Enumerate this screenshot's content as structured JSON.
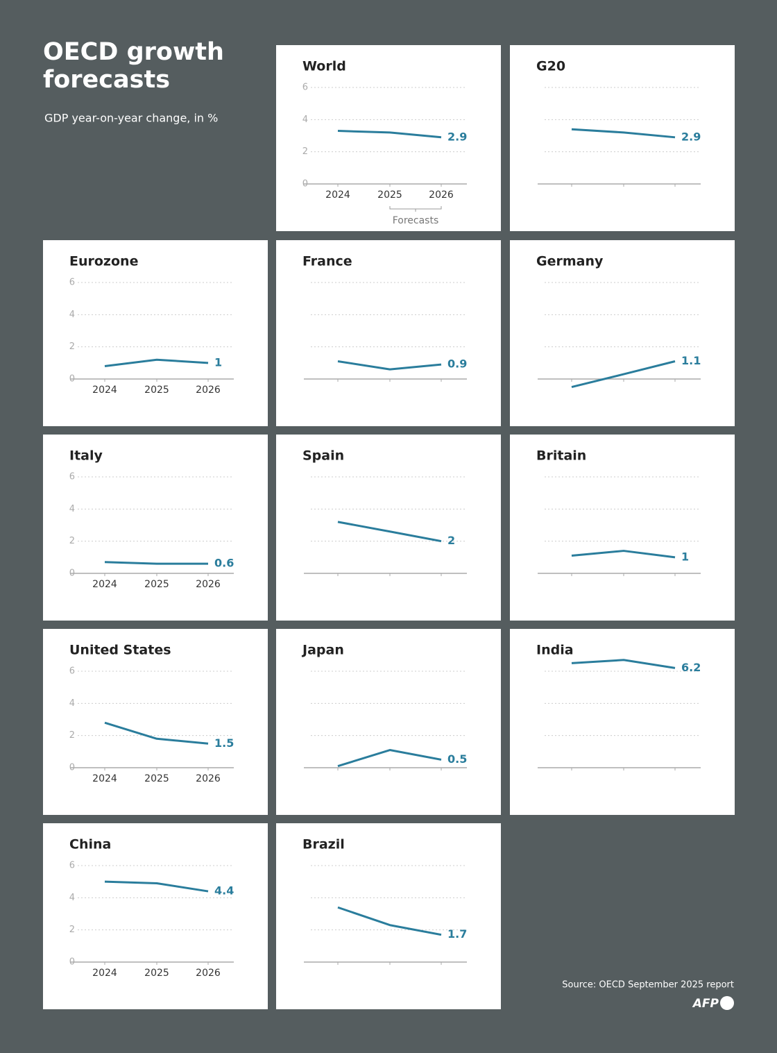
{
  "title": "OECD growth forecasts",
  "subtitle": "GDP year-on-year change, in %",
  "source": "Source: OECD September 2025 report",
  "logo": "AFP",
  "chart_data": [
    {
      "type": "line",
      "title": "World",
      "categories": [
        "2024",
        "2025",
        "2026"
      ],
      "values": [
        3.3,
        3.2,
        2.9
      ],
      "color": "#2a7d9c",
      "ylim": [
        0,
        6
      ],
      "yticks": [
        0,
        2,
        4,
        6
      ],
      "ytick_labels": true,
      "grid": true,
      "annotation": "Forecasts"
    },
    {
      "type": "line",
      "title": "G20",
      "categories": [
        null,
        null,
        null
      ],
      "values": [
        3.4,
        3.2,
        2.9
      ],
      "color": "#2a7d9c",
      "ylim": [
        0,
        6
      ],
      "yticks": [
        0,
        2,
        4,
        6
      ],
      "ytick_labels": false,
      "grid": true
    },
    {
      "type": "line",
      "title": "Eurozone",
      "categories": [
        "2024",
        "2025",
        "2026"
      ],
      "values": [
        0.8,
        1.2,
        1
      ],
      "color": "#2a7d9c",
      "ylim": [
        0,
        6
      ],
      "yticks": [
        0,
        2,
        4,
        6
      ],
      "ytick_labels": true,
      "grid": true
    },
    {
      "type": "line",
      "title": "France",
      "categories": [
        null,
        null,
        null
      ],
      "values": [
        1.1,
        0.6,
        0.9
      ],
      "color": "#2a7d9c",
      "ylim": [
        0,
        6
      ],
      "yticks": [
        0,
        2,
        4,
        6
      ],
      "ytick_labels": false,
      "grid": true
    },
    {
      "type": "line",
      "title": "Germany",
      "categories": [
        null,
        null,
        null
      ],
      "values": [
        -0.5,
        0.3,
        1.1
      ],
      "color": "#2a7d9c",
      "ylim": [
        0,
        6
      ],
      "yticks": [
        0,
        2,
        4,
        6
      ],
      "ytick_labels": false,
      "grid": true
    },
    {
      "type": "line",
      "title": "Italy",
      "categories": [
        "2024",
        "2025",
        "2026"
      ],
      "values": [
        0.7,
        0.6,
        0.6
      ],
      "color": "#2a7d9c",
      "ylim": [
        0,
        6
      ],
      "yticks": [
        0,
        2,
        4,
        6
      ],
      "ytick_labels": true,
      "grid": true
    },
    {
      "type": "line",
      "title": "Spain",
      "categories": [
        null,
        null,
        null
      ],
      "values": [
        3.2,
        2.6,
        2
      ],
      "color": "#2a7d9c",
      "ylim": [
        0,
        6
      ],
      "yticks": [
        0,
        2,
        4,
        6
      ],
      "ytick_labels": false,
      "grid": true
    },
    {
      "type": "line",
      "title": "Britain",
      "categories": [
        null,
        null,
        null
      ],
      "values": [
        1.1,
        1.4,
        1
      ],
      "color": "#2a7d9c",
      "ylim": [
        0,
        6
      ],
      "yticks": [
        0,
        2,
        4,
        6
      ],
      "ytick_labels": false,
      "grid": true
    },
    {
      "type": "line",
      "title": "United States",
      "categories": [
        "2024",
        "2025",
        "2026"
      ],
      "values": [
        2.8,
        1.8,
        1.5
      ],
      "color": "#2a7d9c",
      "ylim": [
        0,
        6
      ],
      "yticks": [
        0,
        2,
        4,
        6
      ],
      "ytick_labels": true,
      "grid": true
    },
    {
      "type": "line",
      "title": "Japan",
      "categories": [
        null,
        null,
        null
      ],
      "values": [
        0.1,
        1.1,
        0.5
      ],
      "color": "#2a7d9c",
      "ylim": [
        0,
        6
      ],
      "yticks": [
        0,
        2,
        4,
        6
      ],
      "ytick_labels": false,
      "grid": true
    },
    {
      "type": "line",
      "title": "India",
      "categories": [
        null,
        null,
        null
      ],
      "values": [
        6.5,
        6.7,
        6.2
      ],
      "color": "#2a7d9c",
      "ylim": [
        0,
        6
      ],
      "yticks": [
        0,
        2,
        4,
        6
      ],
      "ytick_labels": false,
      "grid": true
    },
    {
      "type": "line",
      "title": "China",
      "categories": [
        "2024",
        "2025",
        "2026"
      ],
      "values": [
        5,
        4.9,
        4.4
      ],
      "color": "#2a7d9c",
      "ylim": [
        0,
        6
      ],
      "yticks": [
        0,
        2,
        4,
        6
      ],
      "ytick_labels": true,
      "grid": true
    },
    {
      "type": "line",
      "title": "Brazil",
      "categories": [
        null,
        null,
        null
      ],
      "values": [
        3.4,
        2.3,
        1.7
      ],
      "color": "#2a7d9c",
      "ylim": [
        0,
        6
      ],
      "yticks": [
        0,
        2,
        4,
        6
      ],
      "ytick_labels": false,
      "grid": true
    }
  ]
}
